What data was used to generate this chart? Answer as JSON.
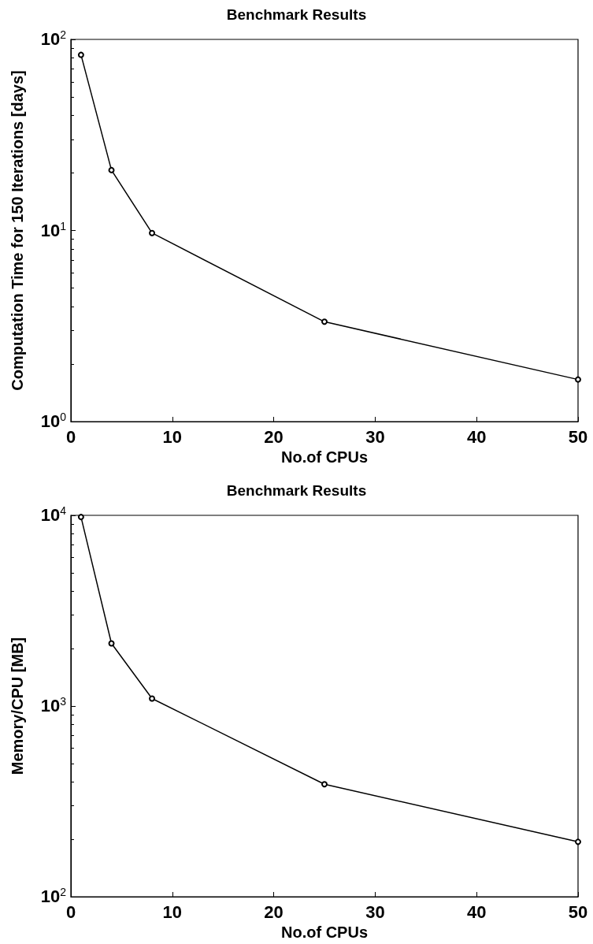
{
  "chart_data": [
    {
      "type": "line",
      "title": "Benchmark Results",
      "xlabel": "No.of CPUs",
      "ylabel": "Computation Time for 150 Iterations [days]",
      "x": [
        1,
        4,
        8,
        25,
        50
      ],
      "series": [
        {
          "color": "#000000",
          "values": [
            83,
            20.7,
            9.7,
            3.33,
            1.66
          ]
        }
      ],
      "xlim": [
        0,
        50
      ],
      "xticks": [
        0,
        10,
        20,
        30,
        40,
        50
      ],
      "ylim": [
        1,
        100
      ],
      "log": "y",
      "yticks": [
        {
          "value": 1,
          "label": "10$^{0}$"
        },
        {
          "value": 10,
          "label": "10$^{1}$"
        },
        {
          "value": 100,
          "label": "10$^{2}$"
        }
      ],
      "grid": false,
      "marker": "circle",
      "line_style": "solid"
    },
    {
      "type": "line",
      "title": "Benchmark Results",
      "xlabel": "No.of CPUs",
      "ylabel": "Memory/CPU [MB]",
      "x": [
        1,
        4,
        8,
        25,
        50
      ],
      "series": [
        {
          "color": "#000000",
          "values": [
            9800,
            2130,
            1095,
            389,
            194
          ]
        }
      ],
      "xlim": [
        0,
        50
      ],
      "xticks": [
        0,
        10,
        20,
        30,
        40,
        50
      ],
      "ylim": [
        100,
        10000
      ],
      "log": "y",
      "yticks": [
        {
          "value": 100,
          "label": "10$^{2}$"
        },
        {
          "value": 1000,
          "label": "10$^{3}$"
        },
        {
          "value": 10000,
          "label": "10$^{4}$"
        }
      ],
      "grid": false,
      "marker": "circle",
      "line_style": "solid"
    }
  ]
}
